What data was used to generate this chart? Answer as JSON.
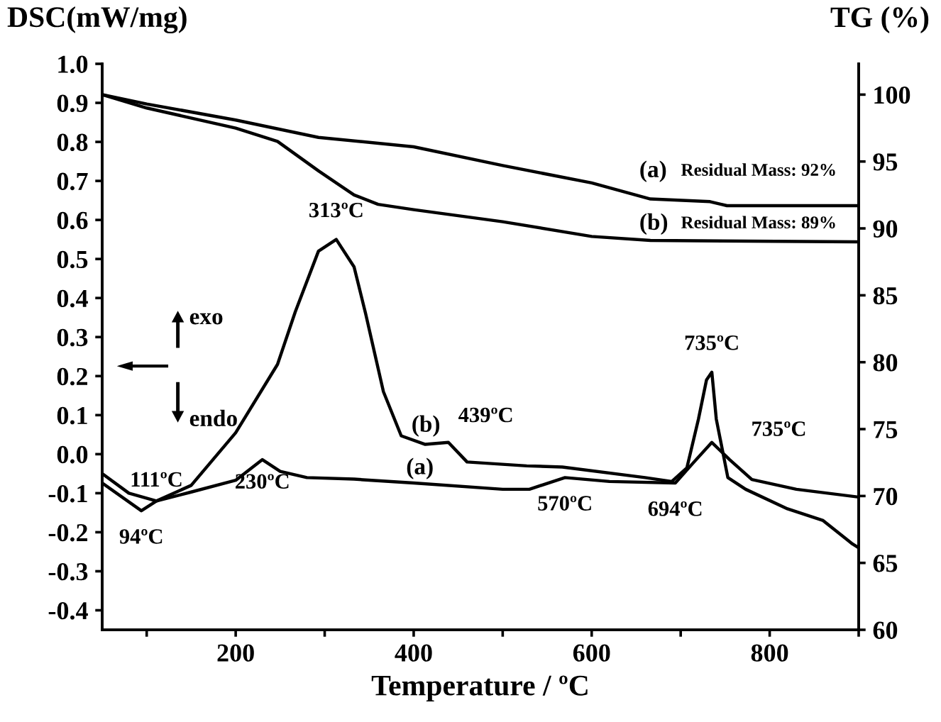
{
  "chart_data": {
    "type": "line",
    "xlabel": "Temperature / ºC",
    "ylabel": "DSC(mW/mg)",
    "y2label": "TG (%)",
    "xlim": [
      50,
      900
    ],
    "xticks": [
      {
        "value": 100,
        "label": null
      },
      200,
      {
        "value": 300,
        "label": null
      },
      400,
      {
        "value": 500,
        "label": null
      },
      600,
      {
        "value": 700,
        "label": null
      },
      800,
      {
        "value": 900,
        "label": null
      }
    ],
    "ylim": [
      -0.45,
      1.0
    ],
    "yticks": [
      {
        "value": -0.4,
        "label": "-0.4"
      },
      {
        "value": -0.3,
        "label": "-0.3"
      },
      {
        "value": -0.2,
        "label": "-0.2"
      },
      {
        "value": -0.1,
        "label": "-0.1"
      },
      {
        "value": 0.0,
        "label": "0.0"
      },
      0.1,
      0.2,
      0.3,
      0.4,
      0.5,
      0.6,
      0.7,
      0.8,
      0.9,
      {
        "value": 1.0,
        "label": "1.0"
      }
    ],
    "y2lim": [
      60,
      102.3
    ],
    "y2ticks": [
      60,
      65,
      70,
      75,
      80,
      85,
      90,
      95,
      100
    ],
    "grid": false,
    "legend": false,
    "marker": "none",
    "line_style": "solid",
    "series": [
      {
        "color": "#000000",
        "x": [
          50,
          94,
          111,
          150,
          200,
          230,
          250,
          280,
          333,
          400,
          500,
          530,
          570,
          620,
          694,
          715,
          735,
          755,
          780,
          830,
          900
        ],
        "values": [
          -0.074,
          -0.145,
          -0.12,
          -0.097,
          -0.067,
          -0.014,
          -0.044,
          -0.06,
          -0.064,
          -0.074,
          -0.09,
          -0.09,
          -0.06,
          -0.07,
          -0.074,
          -0.02,
          0.03,
          -0.014,
          -0.065,
          -0.09,
          -0.11
        ]
      },
      {
        "color": "#000000",
        "x": [
          50,
          80,
          111,
          150,
          200,
          247,
          267,
          293,
          313,
          333,
          346,
          366,
          386,
          413,
          439,
          460,
          527,
          567,
          660,
          690,
          707,
          720,
          729,
          735,
          740,
          753,
          773,
          820,
          860,
          893,
          900
        ],
        "values": [
          -0.05,
          -0.1,
          -0.12,
          -0.08,
          0.055,
          0.23,
          0.365,
          0.52,
          0.55,
          0.48,
          0.36,
          0.16,
          0.047,
          0.025,
          0.03,
          -0.02,
          -0.03,
          -0.033,
          -0.06,
          -0.07,
          -0.035,
          0.09,
          0.19,
          0.21,
          0.09,
          -0.06,
          -0.09,
          -0.14,
          -0.17,
          -0.23,
          -0.24
        ]
      },
      {
        "color": "#000000",
        "axis": "y2",
        "x": [
          50,
          100,
          200,
          293,
          400,
          500,
          600,
          666,
          733,
          752,
          900
        ],
        "values": [
          100,
          99.3,
          98.1,
          96.8,
          96.1,
          94.7,
          93.4,
          92.2,
          92.0,
          91.7,
          91.7
        ]
      },
      {
        "color": "#000000",
        "axis": "y2",
        "x": [
          50,
          100,
          200,
          247,
          293,
          333,
          360,
          400,
          500,
          600,
          666,
          900
        ],
        "values": [
          100,
          99.0,
          97.5,
          96.5,
          94.3,
          92.5,
          91.8,
          91.4,
          90.5,
          89.4,
          89.1,
          89.0
        ]
      }
    ],
    "annotations": [
      {
        "text": "313ºC",
        "x": 313,
        "y": 0.55
      },
      {
        "text": "735ºC",
        "x": 735,
        "y": 0.21
      },
      {
        "text": "439ºC",
        "x": 439,
        "y": 0.03
      },
      {
        "text": "111ºC",
        "x": 111,
        "y": -0.12
      },
      {
        "text": "94ºC",
        "x": 94,
        "y": -0.145
      },
      {
        "text": "230ºC",
        "x": 230,
        "y": -0.014
      },
      {
        "text": "570ºC",
        "x": 570,
        "y": -0.06
      },
      {
        "text": "694ºC",
        "x": 694,
        "y": -0.074
      },
      {
        "text": "735ºC",
        "x": 735,
        "y": 0.03
      },
      "(b)",
      "(a)",
      "(a)",
      "Residual Mass: 92%",
      "(b)",
      "Residual Mass: 89%",
      "exo",
      "endo"
    ]
  }
}
